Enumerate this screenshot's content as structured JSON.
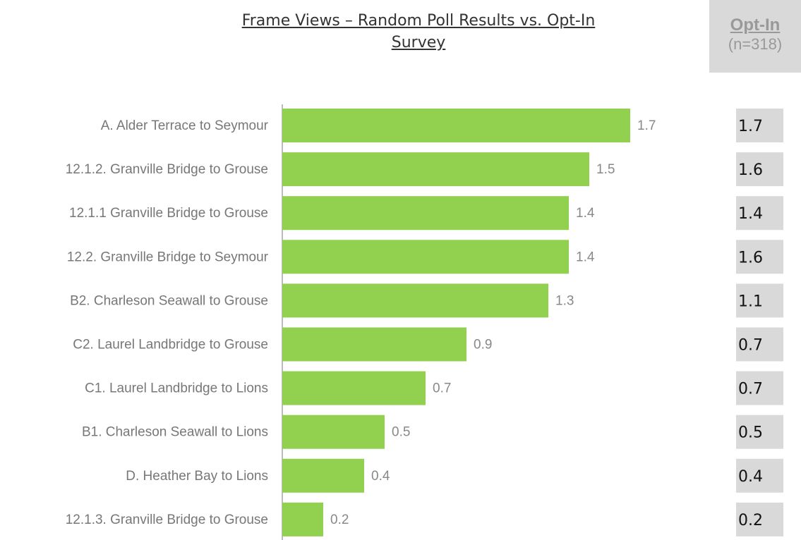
{
  "chart_data": {
    "type": "bar",
    "orientation": "horizontal",
    "title": "Frame Views – Random Poll Results vs. Opt-In Survey",
    "categories": [
      "A. Alder Terrace to Seymour",
      "12.1.2. Granville Bridge to Grouse",
      "12.1.1 Granville Bridge to Grouse",
      "12.2. Granville Bridge to Seymour",
      "B2. Charleson Seawall to Grouse",
      "C2. Laurel Landbridge to Grouse",
      "C1. Laurel Landbridge to Lions",
      "B1. Charleson Seawall to Lions",
      "D. Heather Bay to Lions",
      "12.1.3. Granville Bridge to Grouse"
    ],
    "values": [
      1.7,
      1.5,
      1.4,
      1.4,
      1.3,
      0.9,
      0.7,
      0.5,
      0.4,
      0.2
    ],
    "color": "#92d050",
    "xlim": [
      0,
      2
    ],
    "opt_in": {
      "title": "Opt-In",
      "subtitle": "(n=318)",
      "values": [
        1.7,
        1.6,
        1.4,
        1.6,
        1.1,
        0.7,
        0.7,
        0.5,
        0.4,
        0.2
      ]
    }
  }
}
